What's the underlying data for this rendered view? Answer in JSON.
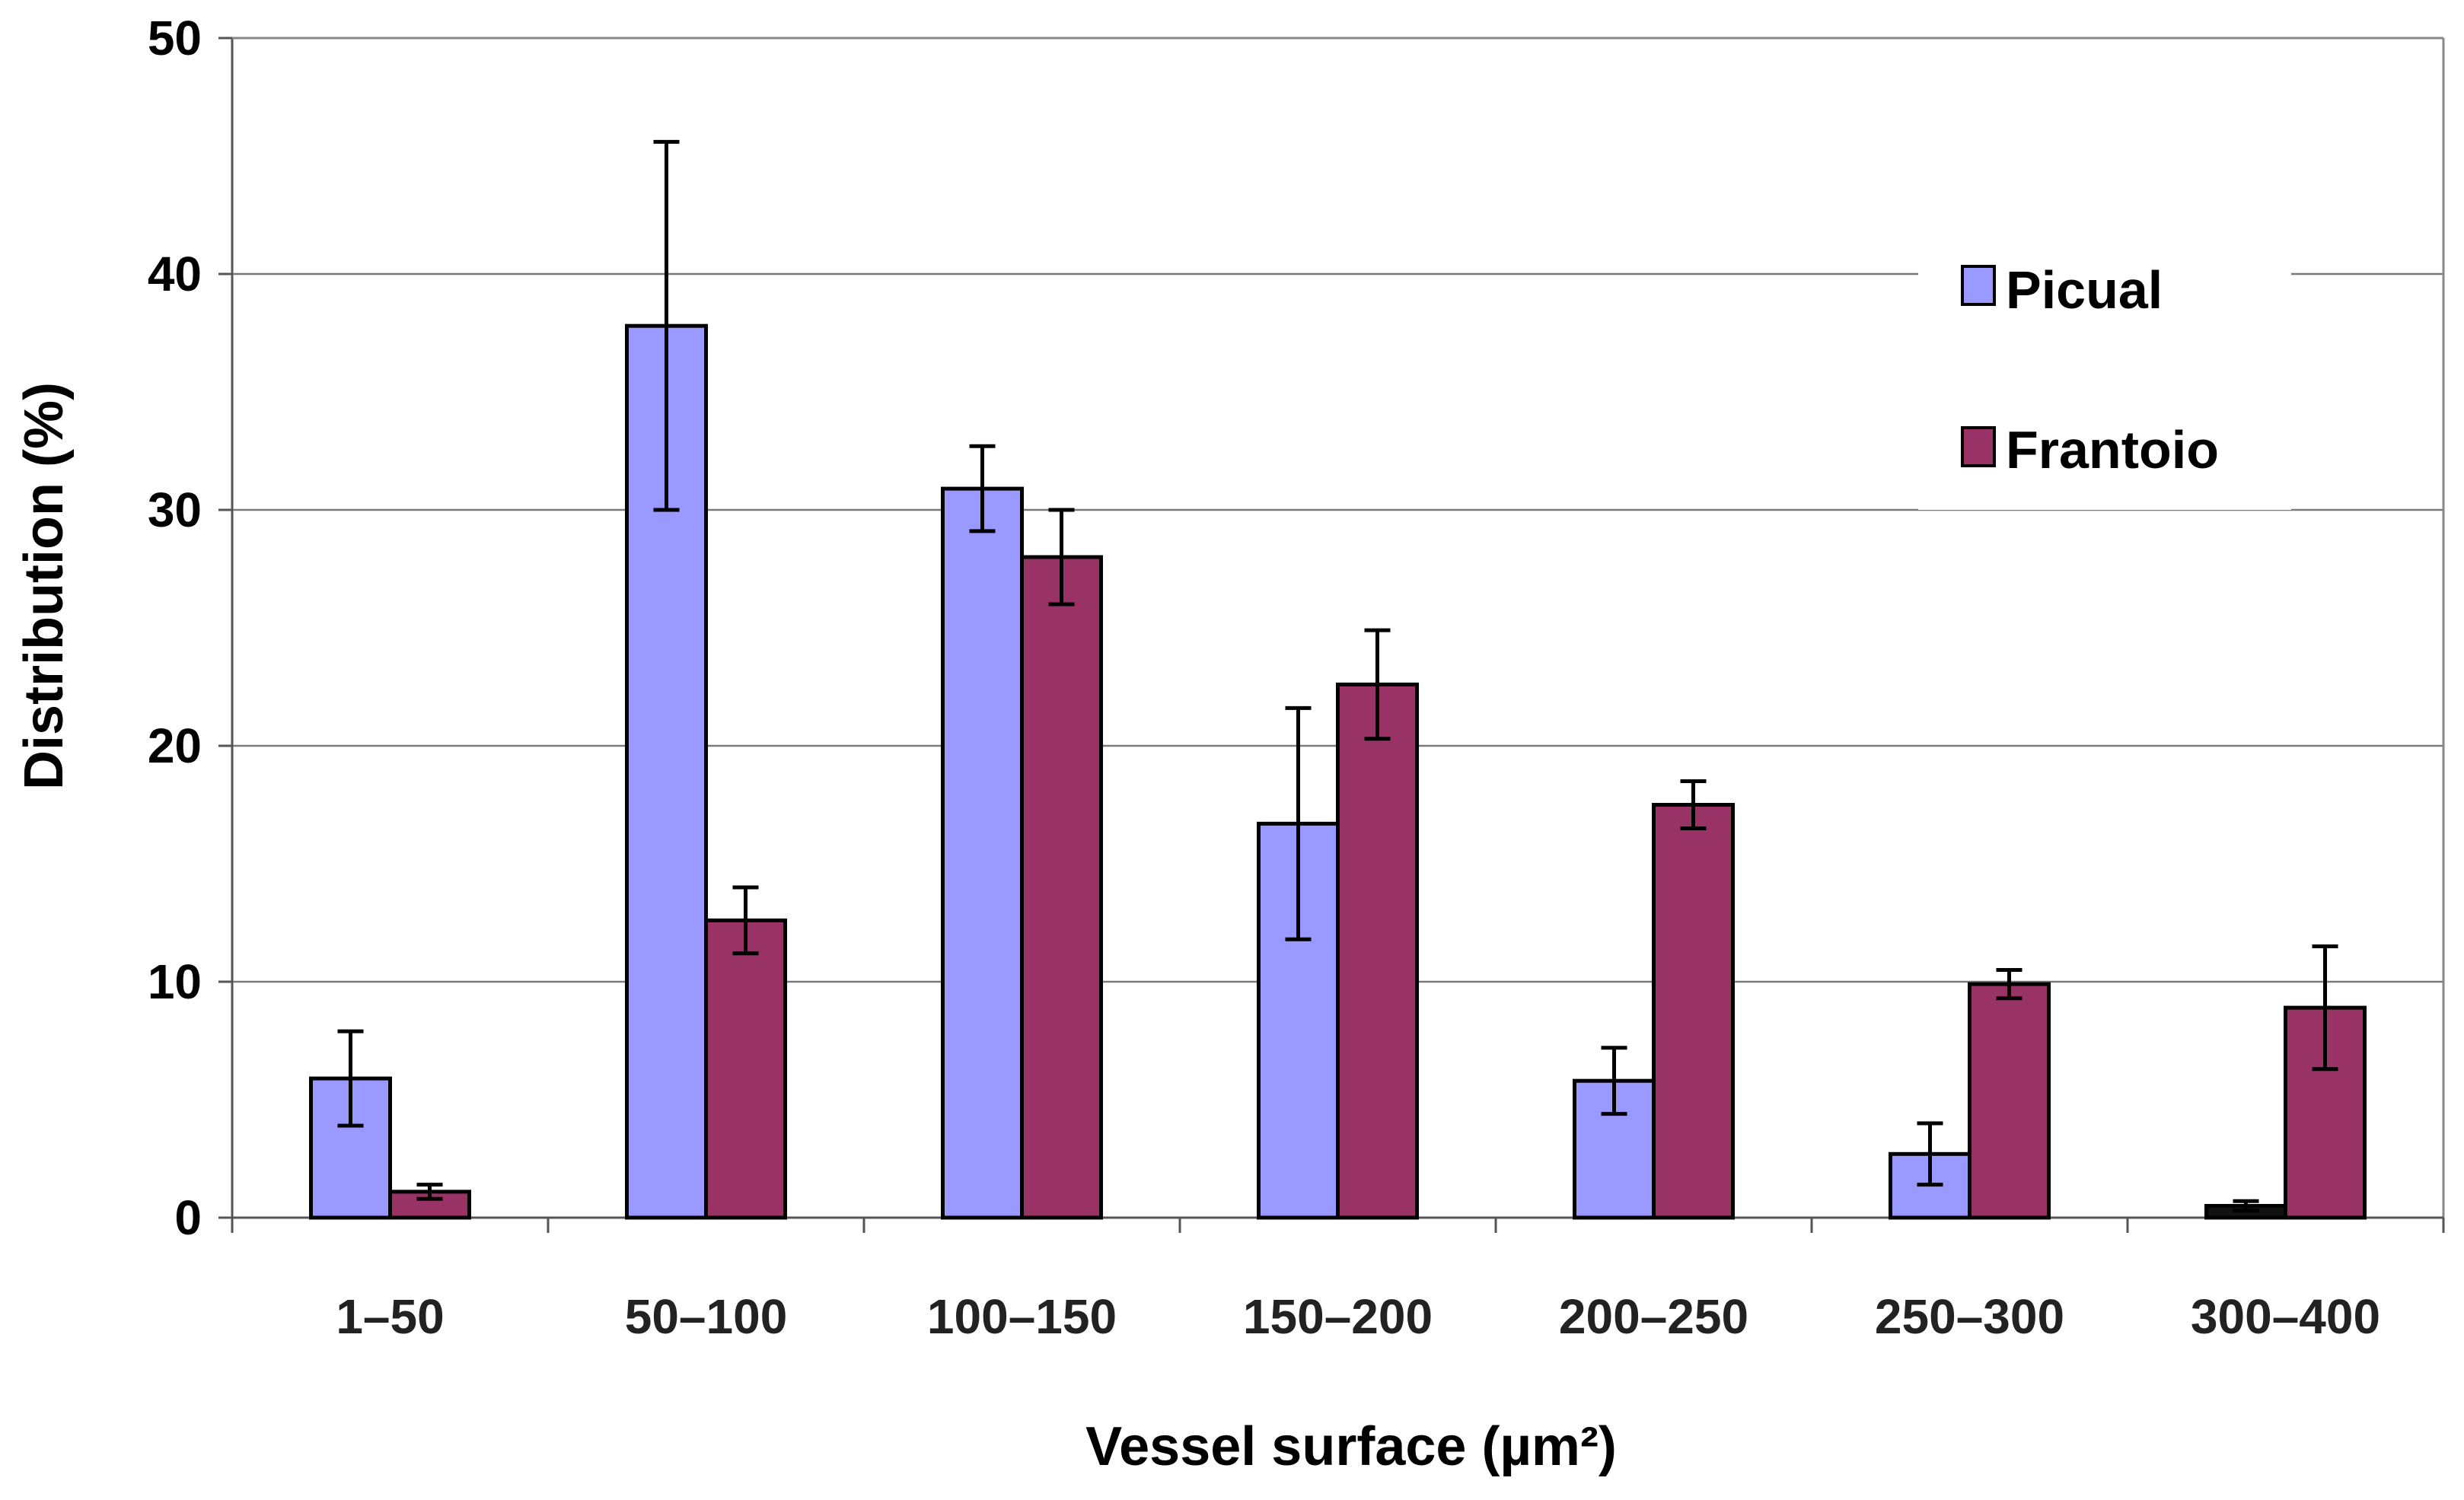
{
  "chart_data": {
    "type": "bar",
    "title": "",
    "xlabel": "Vessel surface (µm²)",
    "ylabel": "Distribution (%)",
    "ylim": [
      0,
      50
    ],
    "yticks": [
      0,
      10,
      20,
      30,
      40,
      50
    ],
    "grid": true,
    "legend_position": "top-right",
    "categories": [
      "1–50",
      "50–100",
      "100–150",
      "150–200",
      "200–250",
      "250–300",
      "300–400"
    ],
    "series": [
      {
        "name": "Picual",
        "color": "#9999ff",
        "values": [
          5.9,
          37.8,
          30.9,
          16.7,
          5.8,
          2.7,
          0.5
        ],
        "error": [
          2.0,
          7.8,
          1.8,
          4.9,
          1.4,
          1.3,
          0.2
        ]
      },
      {
        "name": "Frantoio",
        "color": "#993366",
        "values": [
          1.1,
          12.6,
          28.0,
          22.6,
          17.5,
          9.9,
          8.9
        ],
        "error": [
          0.3,
          1.4,
          2.0,
          2.3,
          1.0,
          0.6,
          2.6
        ]
      }
    ]
  }
}
